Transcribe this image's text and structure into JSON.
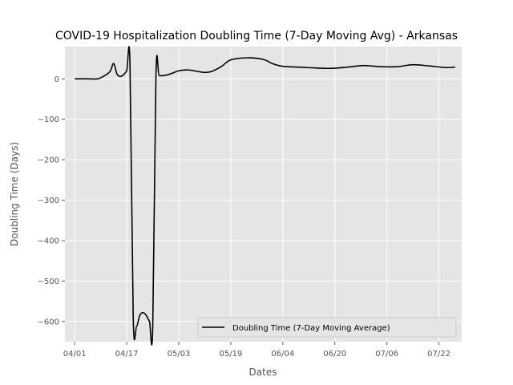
{
  "chart_data": {
    "type": "line",
    "title": "COVID-19 Hospitalization Doubling Time (7-Day Moving Avg) - Arkansas",
    "xlabel": "Dates",
    "ylabel": "Doubling Time (Days)",
    "ylim": [
      -650,
      80
    ],
    "yticks": [
      0,
      -100,
      -200,
      -300,
      -400,
      -500,
      -600
    ],
    "ytick_labels": [
      "0",
      "−100",
      "−200",
      "−300",
      "−400",
      "−500",
      "−600"
    ],
    "xlim": [
      "2020-03-29",
      "2020-07-29"
    ],
    "xticks": [
      "2020-04-01",
      "2020-04-17",
      "2020-05-03",
      "2020-05-19",
      "2020-06-04",
      "2020-06-20",
      "2020-07-06",
      "2020-07-22"
    ],
    "xtick_labels": [
      "04/01",
      "04/17",
      "05/03",
      "05/19",
      "06/04",
      "06/20",
      "07/06",
      "07/22"
    ],
    "grid": true,
    "legend_position": "lower-right",
    "series": [
      {
        "name": "Doubling Time (7-Day Moving Average)",
        "color": "#000000",
        "x": [
          "2020-04-01",
          "2020-04-05",
          "2020-04-08",
          "2020-04-10",
          "2020-04-11",
          "2020-04-12",
          "2020-04-13",
          "2020-04-14",
          "2020-04-15",
          "2020-04-16",
          "2020-04-17",
          "2020-04-18",
          "2020-04-19",
          "2020-04-20",
          "2020-04-21",
          "2020-04-22",
          "2020-04-23",
          "2020-04-24",
          "2020-04-25",
          "2020-04-26",
          "2020-04-27",
          "2020-04-29",
          "2020-05-01",
          "2020-05-03",
          "2020-05-06",
          "2020-05-09",
          "2020-05-11",
          "2020-05-13",
          "2020-05-16",
          "2020-05-19",
          "2020-05-24",
          "2020-05-29",
          "2020-06-01",
          "2020-06-04",
          "2020-06-09",
          "2020-06-14",
          "2020-06-19",
          "2020-06-24",
          "2020-06-29",
          "2020-07-04",
          "2020-07-09",
          "2020-07-14",
          "2020-07-19",
          "2020-07-24",
          "2020-07-27"
        ],
        "y": [
          0,
          0,
          0,
          7,
          12,
          20,
          38,
          12,
          6,
          10,
          20,
          38,
          -590,
          -613,
          -585,
          -578,
          -585,
          -600,
          -615,
          13,
          8,
          9,
          14,
          20,
          22,
          18,
          16,
          18,
          30,
          47,
          52,
          48,
          37,
          31,
          29,
          27,
          26,
          29,
          33,
          30,
          30,
          35,
          32,
          28,
          29
        ]
      }
    ]
  }
}
